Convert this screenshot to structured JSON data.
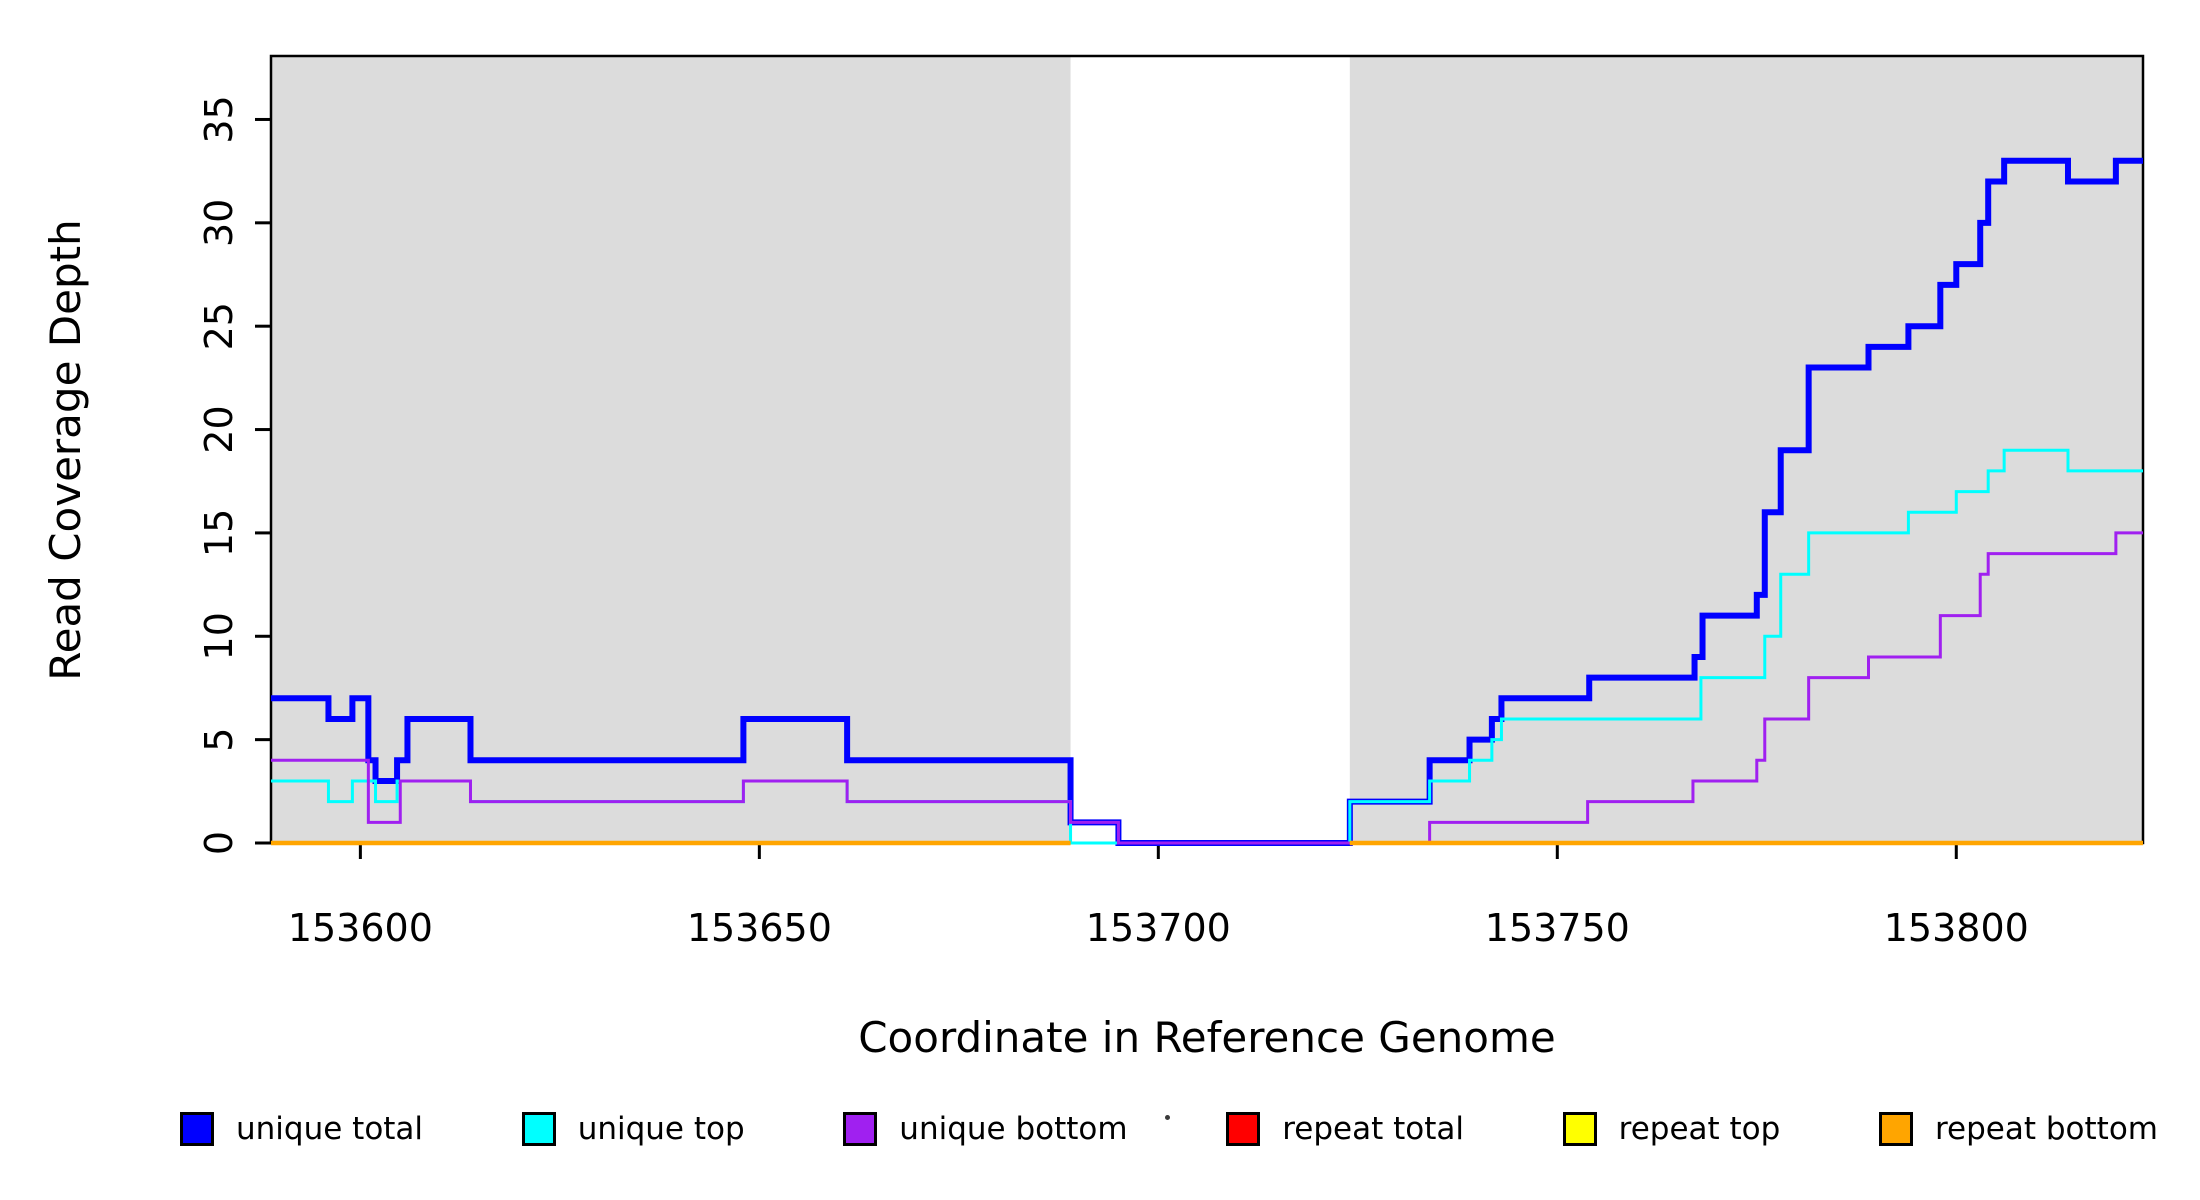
{
  "chart_data": {
    "type": "line",
    "step_style": "post",
    "title": "",
    "xlabel": "Coordinate in Reference Genome",
    "ylabel": "Read Coverage Depth",
    "xlim": [
      153588.8,
      153823.4
    ],
    "ylim": [
      0,
      38.07
    ],
    "grid": false,
    "legend_position": "bottom",
    "x_ticks": [
      153600,
      153650,
      153700,
      153750,
      153800
    ],
    "y_ticks": [
      0,
      5,
      10,
      15,
      20,
      25,
      30,
      35
    ],
    "plot_background": "#ffffff",
    "band_color": "#DCDCDC",
    "axis_color": "#000000",
    "background_bands": [
      {
        "x0": 153588.8,
        "x1": 153689.0
      },
      {
        "x0": 153724.0,
        "x1": 153823.4
      }
    ],
    "series": [
      {
        "name": "unique total",
        "color": "#0000FF",
        "width": 6,
        "segments": [
          {
            "points": [
              [
                153588.8,
                7
              ],
              [
                153596,
                6
              ],
              [
                153599,
                7
              ],
              [
                153601,
                4
              ],
              [
                153601.9,
                3
              ],
              [
                153604.6,
                4
              ],
              [
                153605.9,
                6
              ],
              [
                153613.8,
                4
              ],
              [
                153648,
                6
              ],
              [
                153661,
                4
              ],
              [
                153689,
                1
              ],
              [
                153695,
                0
              ],
              [
                153724,
                2
              ],
              [
                153734,
                4
              ],
              [
                153739,
                5
              ],
              [
                153741.8,
                6
              ],
              [
                153743,
                7
              ],
              [
                153754,
                8
              ],
              [
                153767.2,
                9
              ],
              [
                153768.2,
                11
              ],
              [
                153775,
                12
              ],
              [
                153776,
                16
              ],
              [
                153778,
                19
              ],
              [
                153781.5,
                23
              ],
              [
                153789,
                24
              ],
              [
                153794,
                25
              ],
              [
                153798,
                27
              ],
              [
                153800,
                28
              ],
              [
                153803,
                30
              ],
              [
                153804,
                32
              ],
              [
                153806,
                33
              ],
              [
                153814,
                32
              ],
              [
                153820,
                33
              ]
            ],
            "end": 153823.4
          }
        ]
      },
      {
        "name": "unique top",
        "color": "#00FFFF",
        "width": 3,
        "segments": [
          {
            "points": [
              [
                153588.8,
                3
              ],
              [
                153596,
                2
              ],
              [
                153599,
                3
              ],
              [
                153601.9,
                2
              ],
              [
                153604.6,
                3
              ],
              [
                153613.8,
                2
              ],
              [
                153648,
                3
              ],
              [
                153661,
                2
              ],
              [
                153689,
                0
              ],
              [
                153724,
                2
              ],
              [
                153734,
                3
              ],
              [
                153739,
                4
              ],
              [
                153741.8,
                5
              ],
              [
                153743,
                6
              ],
              [
                153768,
                8
              ],
              [
                153776,
                10
              ],
              [
                153778,
                13
              ],
              [
                153781.5,
                15
              ],
              [
                153794,
                16
              ],
              [
                153800,
                17
              ],
              [
                153804,
                18
              ],
              [
                153806,
                19
              ],
              [
                153814,
                18
              ]
            ],
            "end": 153823.4
          }
        ]
      },
      {
        "name": "unique bottom",
        "color": "#A020F0",
        "width": 3,
        "segments": [
          {
            "points": [
              [
                153588.8,
                4
              ],
              [
                153601,
                1
              ],
              [
                153605,
                3
              ],
              [
                153613.8,
                2
              ],
              [
                153648,
                3
              ],
              [
                153661,
                2
              ],
              [
                153689,
                1
              ],
              [
                153695,
                0
              ],
              [
                153734,
                1
              ],
              [
                153753.8,
                2
              ],
              [
                153767,
                3
              ],
              [
                153775,
                4
              ],
              [
                153776,
                6
              ],
              [
                153781.5,
                8
              ],
              [
                153789,
                9
              ],
              [
                153798,
                11
              ],
              [
                153803,
                13
              ],
              [
                153804,
                14
              ],
              [
                153820,
                15
              ]
            ],
            "end": 153823.4
          }
        ]
      },
      {
        "name": "repeat total",
        "color": "#FF0000",
        "width": 3,
        "segments": [
          {
            "points": [
              [
                153588.8,
                0
              ]
            ],
            "end": 153689.0
          },
          {
            "points": [
              [
                153724.0,
                0
              ]
            ],
            "end": 153823.4
          }
        ]
      },
      {
        "name": "repeat top",
        "color": "#FFFF00",
        "width": 3,
        "segments": [
          {
            "points": [
              [
                153588.8,
                0
              ]
            ],
            "end": 153689.0
          },
          {
            "points": [
              [
                153724.0,
                0
              ]
            ],
            "end": 153823.4
          }
        ]
      },
      {
        "name": "repeat bottom",
        "color": "#FFA500",
        "width": 4.5,
        "segments": [
          {
            "points": [
              [
                153588.8,
                0
              ]
            ],
            "end": 153689.0
          },
          {
            "points": [
              [
                153724.0,
                0
              ]
            ],
            "end": 153823.4
          }
        ]
      }
    ]
  },
  "axes": {
    "x_label": "Coordinate in Reference Genome",
    "y_label": "Read Coverage Depth",
    "x_tick_labels": [
      "153600",
      "153650",
      "153700",
      "153750",
      "153800"
    ],
    "y_tick_labels": [
      "0",
      "5",
      "10",
      "15",
      "20",
      "25",
      "30",
      "35"
    ]
  },
  "legend": {
    "items": [
      {
        "label": "unique total",
        "color": "#0000FF"
      },
      {
        "label": "unique top",
        "color": "#00FFFF"
      },
      {
        "label": "unique bottom",
        "color": "#A020F0"
      },
      {
        "label": "repeat total",
        "color": "#FF0000"
      },
      {
        "label": "repeat top",
        "color": "#FFFF00"
      },
      {
        "label": "repeat bottom",
        "color": "#FFA500"
      }
    ]
  }
}
